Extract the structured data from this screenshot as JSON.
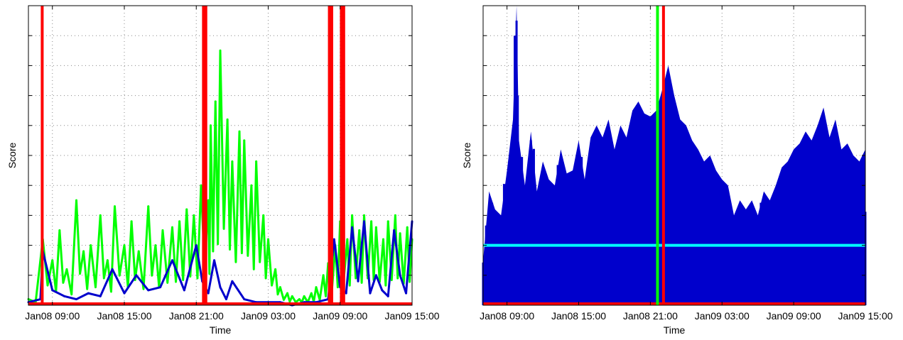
{
  "colors": {
    "green": "#00ff00",
    "blue": "#0000cc",
    "red": "#ff0000",
    "cyan": "#00ffff",
    "grid": "#888888"
  },
  "chart_data": [
    {
      "type": "line",
      "xlabel": "Time",
      "ylabel": "Score",
      "xlim": [
        0,
        32
      ],
      "ylim": [
        0,
        100
      ],
      "grid": true,
      "x_tick_values": [
        2,
        8,
        14,
        20,
        26,
        32
      ],
      "x_tick_labels": [
        "Jan08 09:00",
        "Jan08 15:00",
        "Jan08 21:00",
        "Jan09 03:00",
        "Jan09 09:00",
        "Jan09 15:00"
      ],
      "y_tick_count": 10,
      "series": [
        {
          "color": "#00ff00",
          "style": "spiky",
          "x": [
            0,
            1.2,
            2,
            2.6,
            3.2,
            4,
            4.6,
            5.2,
            6,
            6.6,
            7.2,
            8,
            8.6,
            9.2,
            10,
            10.6,
            11.2,
            12,
            12.6,
            13.2,
            13.8,
            14.4,
            15,
            15.2,
            15.6,
            16,
            16.6,
            17,
            17.6,
            18,
            18.6,
            19,
            19.6,
            20,
            20.6,
            21,
            21.6,
            22,
            22.6,
            23,
            23.6,
            24,
            24.6,
            25,
            25.6,
            26,
            26.6,
            27,
            27.6,
            28,
            28.6,
            29,
            29.6,
            30,
            30.6,
            31,
            31.6,
            32
          ],
          "y": [
            2,
            22,
            15,
            25,
            12,
            35,
            18,
            20,
            30,
            15,
            33,
            20,
            28,
            18,
            33,
            20,
            25,
            26,
            28,
            32,
            30,
            40,
            35,
            60,
            68,
            85,
            62,
            48,
            58,
            55,
            40,
            48,
            30,
            22,
            12,
            6,
            4,
            3,
            2,
            3,
            4,
            6,
            10,
            14,
            20,
            28,
            22,
            30,
            25,
            30,
            28,
            26,
            22,
            28,
            30,
            24,
            26,
            22
          ]
        },
        {
          "color": "#0000cc",
          "style": "smooth",
          "x": [
            0,
            1,
            1.2,
            2,
            3,
            4,
            5,
            6,
            7,
            8,
            9,
            10,
            11,
            12,
            13,
            14,
            14.5,
            15,
            15.5,
            16,
            16.5,
            17,
            18,
            19,
            20,
            21,
            22,
            23,
            24,
            25,
            25.5,
            26,
            26.5,
            27,
            27.5,
            28,
            28.5,
            29,
            29.5,
            30,
            30.5,
            31,
            31.5,
            32
          ],
          "y": [
            1,
            2,
            18,
            5,
            3,
            2,
            4,
            3,
            12,
            4,
            10,
            5,
            6,
            15,
            5,
            20,
            8,
            4,
            15,
            6,
            2,
            8,
            2,
            1,
            1,
            1,
            0,
            1,
            1,
            2,
            22,
            6,
            4,
            26,
            8,
            28,
            4,
            10,
            5,
            3,
            25,
            10,
            4,
            28
          ]
        }
      ],
      "vlines": {
        "color": "#ff0000",
        "x": [
          1.15,
          14.6,
          14.8,
          25.1,
          25.3,
          26.1,
          26.3
        ]
      },
      "hlines": {
        "color": "#ff0000",
        "y": [
          0
        ]
      }
    },
    {
      "type": "bar",
      "xlabel": "Time",
      "ylabel": "Score",
      "xlim": [
        0,
        32
      ],
      "ylim": [
        0,
        100
      ],
      "grid": true,
      "x_tick_values": [
        2,
        8,
        14,
        20,
        26,
        32
      ],
      "x_tick_labels": [
        "Jan08 09:00",
        "Jan08 15:00",
        "Jan08 21:00",
        "Jan09 03:00",
        "Jan09 09:00",
        "Jan09 15:00"
      ],
      "y_tick_count": 10,
      "series": [
        {
          "color": "#0000cc",
          "style": "dense-bars",
          "x": [
            0,
            0.5,
            1,
            1.5,
            2,
            2.5,
            2.8,
            3,
            3.5,
            4,
            4.5,
            5,
            5.5,
            6,
            6.5,
            7,
            7.5,
            8,
            8.5,
            9,
            9.5,
            10,
            10.5,
            11,
            11.5,
            12,
            12.5,
            13,
            13.5,
            14,
            14.5,
            15,
            15.5,
            16,
            16.5,
            17,
            17.5,
            18,
            18.5,
            19,
            19.5,
            20,
            20.5,
            21,
            21.5,
            22,
            22.5,
            23,
            23.5,
            24,
            24.5,
            25,
            25.5,
            26,
            26.5,
            27,
            27.5,
            28,
            28.5,
            29,
            29.5,
            30,
            30.5,
            31,
            31.5,
            32
          ],
          "y": [
            15,
            38,
            32,
            30,
            45,
            62,
            100,
            55,
            40,
            58,
            38,
            48,
            42,
            40,
            52,
            44,
            45,
            55,
            42,
            56,
            60,
            56,
            62,
            52,
            60,
            56,
            65,
            68,
            64,
            63,
            65,
            72,
            80,
            70,
            62,
            60,
            55,
            52,
            48,
            50,
            45,
            42,
            40,
            30,
            35,
            32,
            35,
            30,
            38,
            35,
            40,
            46,
            48,
            52,
            54,
            58,
            55,
            60,
            66,
            56,
            62,
            52,
            54,
            50,
            48,
            52
          ]
        }
      ],
      "vlines": [
        {
          "color": "#00ff00",
          "x": [
            14.6
          ]
        },
        {
          "color": "#ff0000",
          "x": [
            15.1
          ]
        }
      ],
      "hlines": [
        {
          "color": "#00ffff",
          "y": [
            20
          ]
        },
        {
          "color": "#ff0000",
          "y": [
            0
          ]
        }
      ]
    }
  ]
}
